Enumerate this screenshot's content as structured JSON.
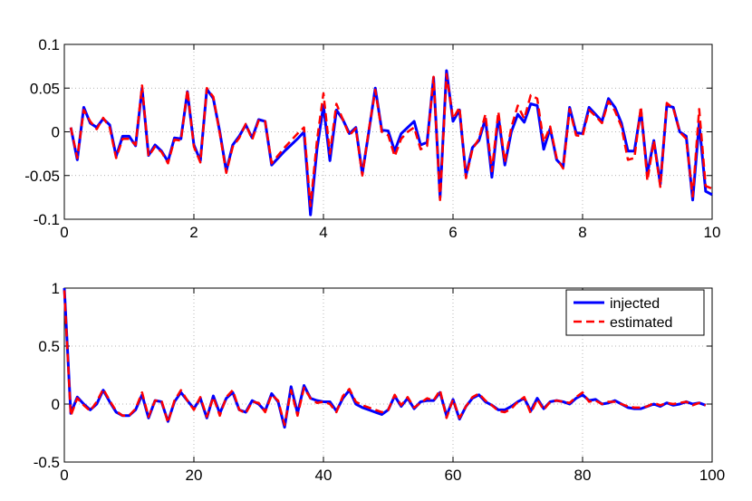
{
  "chart_data": [
    {
      "type": "line",
      "xlim": [
        0,
        10
      ],
      "ylim": [
        -0.1,
        0.1
      ],
      "xticks": [
        "0",
        "2",
        "4",
        "6",
        "8",
        "10"
      ],
      "yticks": [
        "-0.1",
        "-0.05",
        "0",
        "0.05",
        "0.1"
      ],
      "grid": true,
      "x": [
        0.1,
        0.2,
        0.3,
        0.4,
        0.5,
        0.6,
        0.7,
        0.8,
        0.9,
        1.0,
        1.1,
        1.2,
        1.3,
        1.4,
        1.5,
        1.6,
        1.7,
        1.8,
        1.9,
        2.0,
        2.1,
        2.2,
        2.3,
        2.4,
        2.5,
        2.6,
        2.7,
        2.8,
        2.9,
        3.0,
        3.1,
        3.2,
        3.3,
        3.4,
        3.5,
        3.6,
        3.7,
        3.8,
        3.9,
        4.0,
        4.1,
        4.2,
        4.3,
        4.4,
        4.5,
        4.6,
        4.7,
        4.8,
        4.9,
        5.0,
        5.1,
        5.2,
        5.3,
        5.4,
        5.5,
        5.6,
        5.7,
        5.8,
        5.9,
        6.0,
        6.1,
        6.2,
        6.3,
        6.4,
        6.5,
        6.6,
        6.7,
        6.8,
        6.9,
        7.0,
        7.1,
        7.2,
        7.3,
        7.4,
        7.5,
        7.6,
        7.7,
        7.8,
        7.9,
        8.0,
        8.1,
        8.2,
        8.3,
        8.4,
        8.5,
        8.6,
        8.7,
        8.8,
        8.9,
        9.0,
        9.1,
        9.2,
        9.3,
        9.4,
        9.5,
        9.6,
        9.7,
        9.8,
        9.9,
        10.0
      ],
      "series": [
        {
          "name": "injected",
          "color": "#0000ff",
          "style": "solid",
          "values": [
            0.005,
            -0.032,
            0.028,
            0.01,
            0.005,
            0.015,
            0.008,
            -0.028,
            -0.005,
            -0.005,
            -0.016,
            0.05,
            -0.027,
            -0.015,
            -0.022,
            -0.034,
            -0.007,
            -0.008,
            0.046,
            -0.015,
            -0.033,
            0.049,
            0.038,
            0.0,
            -0.045,
            -0.015,
            -0.005,
            0.008,
            -0.007,
            0.014,
            0.012,
            -0.038,
            -0.03,
            -0.022,
            -0.015,
            -0.008,
            0.0,
            -0.095,
            -0.02,
            0.03,
            -0.033,
            0.025,
            0.014,
            -0.002,
            0.005,
            -0.048,
            0.0,
            0.05,
            0.002,
            0.001,
            -0.022,
            -0.002,
            0.005,
            0.012,
            -0.015,
            -0.012,
            0.062,
            -0.075,
            0.07,
            0.012,
            0.025,
            -0.05,
            -0.018,
            -0.01,
            0.015,
            -0.052,
            0.018,
            -0.038,
            0.0,
            0.02,
            0.011,
            0.032,
            0.03,
            -0.02,
            0.004,
            -0.032,
            -0.04,
            0.028,
            -0.001,
            -0.002,
            0.028,
            0.02,
            0.012,
            0.038,
            0.028,
            0.01,
            -0.022,
            -0.022,
            0.025,
            -0.048,
            -0.01,
            -0.06,
            0.03,
            0.028,
            0.0,
            -0.005,
            -0.078,
            0.01,
            -0.068,
            -0.072
          ]
        },
        {
          "name": "estimated",
          "color": "#ff0000",
          "style": "dashed",
          "values": [
            0.005,
            -0.03,
            0.025,
            0.012,
            0.003,
            0.016,
            0.005,
            -0.03,
            -0.008,
            -0.008,
            -0.015,
            0.053,
            -0.028,
            -0.017,
            -0.023,
            -0.036,
            -0.009,
            -0.01,
            0.048,
            -0.017,
            -0.035,
            0.05,
            0.04,
            -0.002,
            -0.047,
            -0.017,
            -0.007,
            0.009,
            -0.009,
            0.013,
            0.012,
            -0.036,
            -0.027,
            -0.018,
            -0.01,
            -0.002,
            0.005,
            -0.085,
            -0.01,
            0.044,
            -0.025,
            0.032,
            0.014,
            -0.004,
            0.004,
            -0.05,
            0.002,
            0.048,
            0.0,
            -0.004,
            -0.028,
            -0.008,
            0.0,
            0.005,
            -0.02,
            -0.016,
            0.063,
            -0.078,
            0.066,
            0.015,
            0.028,
            -0.053,
            -0.02,
            -0.008,
            0.02,
            -0.045,
            0.023,
            -0.035,
            0.005,
            0.03,
            0.015,
            0.042,
            0.038,
            -0.012,
            0.006,
            -0.03,
            -0.042,
            0.026,
            -0.004,
            -0.005,
            0.025,
            0.018,
            0.01,
            0.035,
            0.024,
            0.006,
            -0.032,
            -0.03,
            0.029,
            -0.056,
            -0.01,
            -0.063,
            0.033,
            0.027,
            0.0,
            -0.008,
            -0.074,
            0.026,
            -0.062,
            -0.065
          ]
        }
      ]
    },
    {
      "type": "line",
      "xlim": [
        0,
        100
      ],
      "ylim": [
        -0.5,
        1
      ],
      "xticks": [
        "0",
        "20",
        "40",
        "60",
        "80",
        "100"
      ],
      "yticks": [
        "-0.5",
        "0",
        "0.5",
        "1"
      ],
      "grid": true,
      "legend": "top-right",
      "x": [
        0,
        1,
        2,
        3,
        4,
        5,
        6,
        7,
        8,
        9,
        10,
        11,
        12,
        13,
        14,
        15,
        16,
        17,
        18,
        19,
        20,
        21,
        22,
        23,
        24,
        25,
        26,
        27,
        28,
        29,
        30,
        31,
        32,
        33,
        34,
        35,
        36,
        37,
        38,
        39,
        40,
        41,
        42,
        43,
        44,
        45,
        46,
        47,
        48,
        49,
        50,
        51,
        52,
        53,
        54,
        55,
        56,
        57,
        58,
        59,
        60,
        61,
        62,
        63,
        64,
        65,
        66,
        67,
        68,
        69,
        70,
        71,
        72,
        73,
        74,
        75,
        76,
        77,
        78,
        79,
        80,
        81,
        82,
        83,
        84,
        85,
        86,
        87,
        88,
        89,
        90,
        91,
        92,
        93,
        94,
        95,
        96,
        97,
        98,
        99
      ],
      "series": [
        {
          "name": "injected",
          "color": "#0000ff",
          "style": "solid",
          "values": [
            1.0,
            -0.08,
            0.06,
            0.0,
            -0.05,
            0.0,
            0.12,
            0.02,
            -0.07,
            -0.1,
            -0.1,
            -0.05,
            0.08,
            -0.12,
            0.03,
            0.02,
            -0.15,
            0.02,
            0.1,
            0.03,
            -0.04,
            0.05,
            -0.12,
            0.07,
            -0.08,
            0.05,
            0.1,
            -0.05,
            -0.07,
            0.03,
            0.0,
            -0.06,
            0.09,
            0.02,
            -0.2,
            0.15,
            -0.08,
            0.16,
            0.05,
            0.03,
            0.02,
            0.02,
            -0.06,
            0.05,
            0.12,
            0.0,
            -0.03,
            -0.05,
            -0.07,
            -0.09,
            -0.05,
            0.07,
            -0.02,
            0.05,
            -0.04,
            0.02,
            0.03,
            0.03,
            0.1,
            -0.1,
            0.04,
            -0.13,
            -0.02,
            0.05,
            0.08,
            0.02,
            -0.01,
            -0.05,
            -0.05,
            -0.02,
            0.02,
            0.05,
            -0.06,
            0.05,
            -0.04,
            0.02,
            0.03,
            0.02,
            0.0,
            0.05,
            0.08,
            0.03,
            0.04,
            0.0,
            0.01,
            0.03,
            0.0,
            -0.03,
            -0.04,
            -0.04,
            -0.02,
            0.0,
            -0.02,
            0.01,
            -0.01,
            0.0,
            0.02,
            0.0,
            0.01,
            -0.01
          ]
        },
        {
          "name": "estimated",
          "color": "#ff0000",
          "style": "dashed",
          "values": [
            0.98,
            -0.1,
            0.05,
            -0.01,
            -0.06,
            0.02,
            0.13,
            0.03,
            -0.06,
            -0.1,
            -0.1,
            -0.04,
            0.1,
            -0.11,
            0.03,
            0.03,
            -0.16,
            0.03,
            0.12,
            0.03,
            -0.05,
            0.06,
            -0.11,
            0.06,
            -0.1,
            0.06,
            0.12,
            -0.05,
            -0.08,
            0.02,
            0.01,
            -0.07,
            0.08,
            0.03,
            -0.18,
            0.12,
            -0.1,
            0.14,
            0.05,
            0.01,
            0.02,
            0.0,
            -0.07,
            0.07,
            0.13,
            0.02,
            -0.01,
            -0.03,
            -0.05,
            -0.07,
            -0.05,
            0.08,
            -0.01,
            0.06,
            -0.03,
            0.01,
            0.05,
            0.03,
            0.12,
            -0.12,
            0.04,
            -0.12,
            -0.02,
            0.06,
            0.09,
            0.03,
            -0.01,
            -0.06,
            -0.07,
            -0.04,
            0.02,
            0.06,
            -0.08,
            0.04,
            -0.05,
            0.02,
            0.03,
            0.02,
            0.01,
            0.06,
            0.1,
            0.02,
            0.03,
            0.0,
            0.02,
            0.02,
            0.0,
            -0.02,
            -0.03,
            -0.03,
            -0.02,
            0.01,
            -0.01,
            0.01,
            0.0,
            0.01,
            0.02,
            -0.01,
            0.01,
            -0.01
          ]
        }
      ]
    }
  ]
}
